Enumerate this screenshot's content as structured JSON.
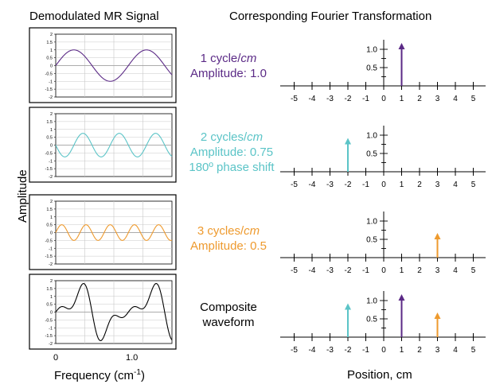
{
  "headers": {
    "left": "Demodulated MR Signal",
    "right": "Corresponding Fourier Transformation"
  },
  "y_axis_label": "Amplitude",
  "x_axis_left": {
    "label_prefix": "Frequency (cm",
    "label_sup": "-1",
    "label_suffix": ")",
    "ticks": [
      "0",
      "1.0"
    ]
  },
  "x_axis_right": {
    "label": "Position, cm"
  },
  "signal_ytick_labels": [
    "2",
    "1.5",
    "1",
    "0.5",
    "0",
    "-0.5",
    "-1",
    "-1.5",
    "-2"
  ],
  "ft_axis_ticks": [
    "-5",
    "-4",
    "-3",
    "-2",
    "-1",
    "0",
    "1",
    "2",
    "3",
    "4",
    "5"
  ],
  "ft_amp_ticks": [
    "1.0",
    "0.5"
  ],
  "colors": {
    "purple": "#5b2a86",
    "cyan": "#5bc4c7",
    "orange": "#ee9a2e",
    "black": "#000000"
  },
  "chart_data": [
    {
      "type": "line",
      "title": "1 cycle/cm",
      "series": [
        {
          "name": "signal",
          "cycles": 1,
          "amplitude": 1.0,
          "phase_deg": 0,
          "color": "#5b2a86"
        }
      ],
      "ylim": [
        -2,
        2
      ],
      "label": {
        "line1_prefix": "1 cycle/",
        "line1_unit": "cm",
        "line2": "Amplitude: 1.0",
        "line3": ""
      },
      "ft": [
        {
          "position": 1,
          "amplitude": 1.0,
          "color": "#5b2a86"
        }
      ]
    },
    {
      "type": "line",
      "title": "2 cycles/cm",
      "series": [
        {
          "name": "signal",
          "cycles": 2,
          "amplitude": 0.75,
          "phase_deg": 180,
          "color": "#5bc4c7"
        }
      ],
      "ylim": [
        -2,
        2
      ],
      "label": {
        "line1_prefix": "2 cycles/",
        "line1_unit": "cm",
        "line2": "Amplitude: 0.75",
        "line3": "180º phase shift"
      },
      "ft": [
        {
          "position": -2,
          "amplitude": 0.75,
          "color": "#5bc4c7"
        }
      ]
    },
    {
      "type": "line",
      "title": "3 cycles/cm",
      "series": [
        {
          "name": "signal",
          "cycles": 3,
          "amplitude": 0.5,
          "phase_deg": 0,
          "color": "#ee9a2e"
        }
      ],
      "ylim": [
        -2,
        2
      ],
      "label": {
        "line1_prefix": "3 cycles/",
        "line1_unit": "cm",
        "line2": "Amplitude: 0.5",
        "line3": ""
      },
      "ft": [
        {
          "position": 3,
          "amplitude": 0.5,
          "color": "#ee9a2e"
        }
      ]
    },
    {
      "type": "line",
      "title": "Composite waveform",
      "series": [
        {
          "name": "composite",
          "composite": true,
          "color": "#000000"
        }
      ],
      "ylim": [
        -2,
        2
      ],
      "label": {
        "line1_prefix": "Composite",
        "line1_unit": "",
        "line2": "waveform",
        "line3": ""
      },
      "ft": [
        {
          "position": -2,
          "amplitude": 0.75,
          "color": "#5bc4c7"
        },
        {
          "position": 1,
          "amplitude": 1.0,
          "color": "#5b2a86"
        },
        {
          "position": 3,
          "amplitude": 0.5,
          "color": "#ee9a2e"
        }
      ]
    }
  ]
}
